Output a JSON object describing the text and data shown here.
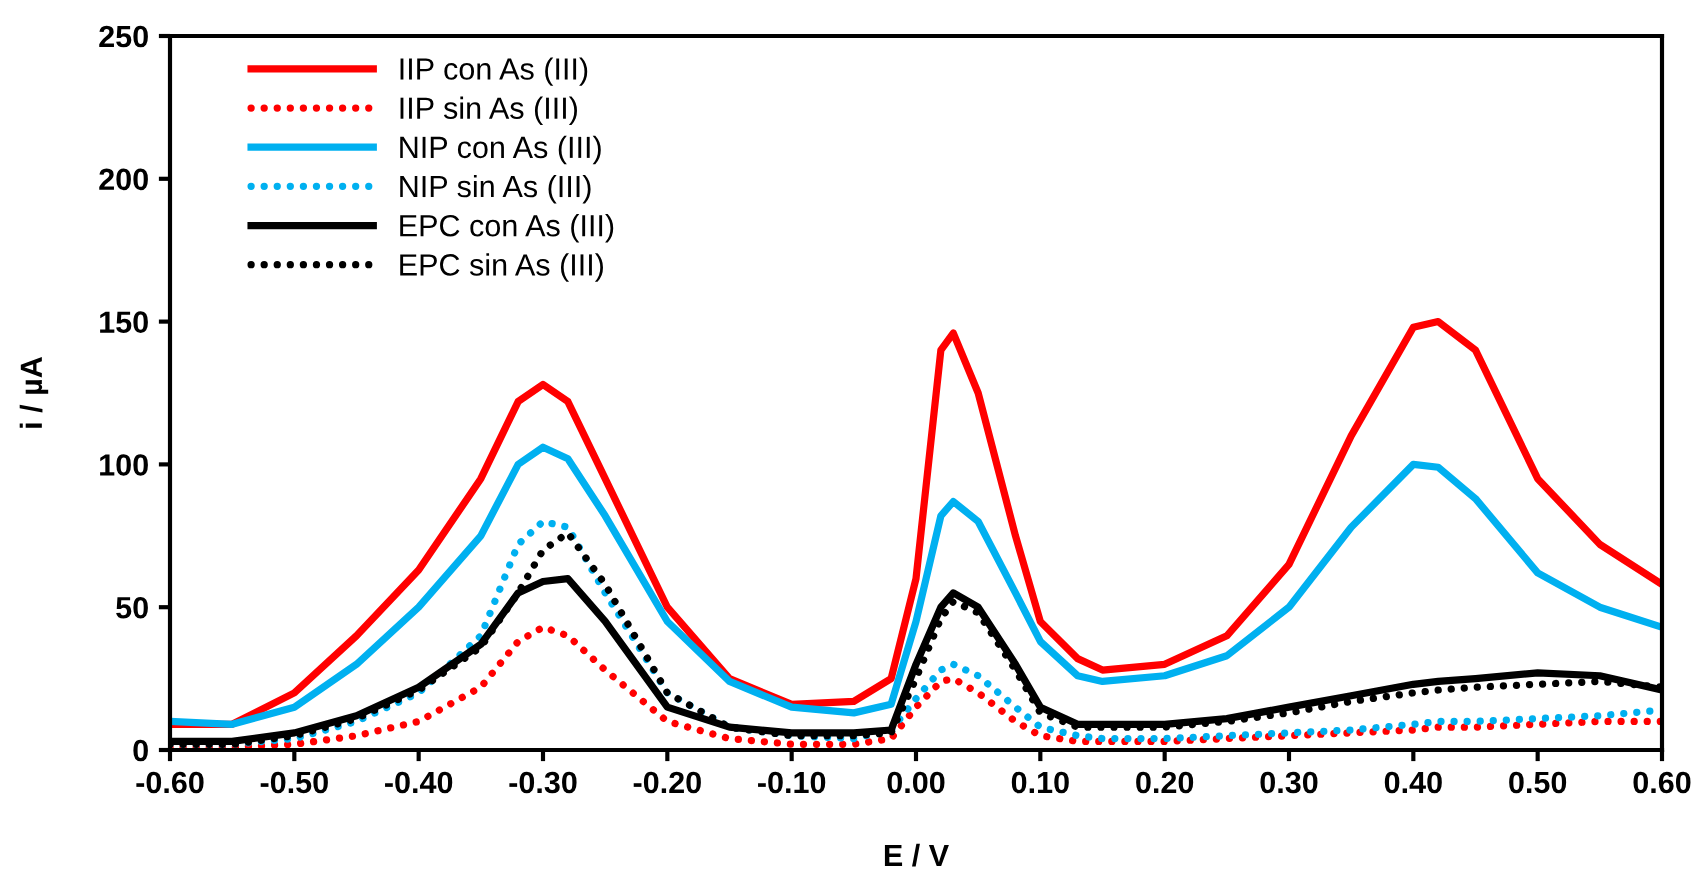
{
  "chart_data": {
    "type": "line",
    "xlabel": "E / V",
    "ylabel": "i / µA",
    "x": [
      -0.6,
      -0.55,
      -0.5,
      -0.45,
      -0.4,
      -0.35,
      -0.32,
      -0.3,
      -0.28,
      -0.25,
      -0.2,
      -0.15,
      -0.1,
      -0.05,
      -0.02,
      0.0,
      0.02,
      0.03,
      0.05,
      0.08,
      0.1,
      0.13,
      0.15,
      0.2,
      0.25,
      0.3,
      0.35,
      0.4,
      0.42,
      0.45,
      0.5,
      0.55,
      0.6
    ],
    "series": [
      {
        "name": "IIP con As (III)",
        "color": "#ff0000",
        "line_style": "solid",
        "values": [
          9,
          9,
          20,
          40,
          63,
          95,
          122,
          128,
          122,
          95,
          50,
          25,
          16,
          17,
          25,
          60,
          140,
          146,
          125,
          75,
          45,
          32,
          28,
          30,
          40,
          65,
          110,
          148,
          150,
          140,
          95,
          72,
          58
        ]
      },
      {
        "name": "IIP sin As (III)",
        "color": "#ff0000",
        "line_style": "dotted",
        "values": [
          1,
          1,
          2,
          5,
          10,
          22,
          38,
          43,
          40,
          28,
          10,
          4,
          2,
          2,
          4,
          15,
          24,
          25,
          20,
          10,
          5,
          3,
          3,
          3,
          4,
          5,
          6,
          7,
          8,
          8,
          9,
          10,
          10
        ]
      },
      {
        "name": "NIP con As (III)",
        "color": "#00b0f0",
        "line_style": "solid",
        "values": [
          10,
          9,
          15,
          30,
          50,
          75,
          100,
          106,
          102,
          82,
          45,
          24,
          15,
          13,
          16,
          45,
          82,
          87,
          80,
          55,
          38,
          26,
          24,
          26,
          33,
          50,
          78,
          100,
          99,
          88,
          62,
          50,
          43
        ]
      },
      {
        "name": "NIP sin As (III)",
        "color": "#00b0f0",
        "line_style": "dotted",
        "values": [
          2,
          2,
          4,
          10,
          20,
          40,
          72,
          80,
          78,
          55,
          20,
          8,
          5,
          4,
          7,
          18,
          28,
          30,
          26,
          15,
          8,
          5,
          4,
          4,
          5,
          6,
          7,
          9,
          10,
          10,
          11,
          12,
          14
        ]
      },
      {
        "name": "EPC con As (III)",
        "color": "#000000",
        "line_style": "solid",
        "values": [
          3,
          3,
          6,
          12,
          22,
          37,
          55,
          59,
          60,
          45,
          15,
          8,
          6,
          6,
          7,
          30,
          50,
          55,
          50,
          30,
          15,
          9,
          9,
          9,
          11,
          15,
          19,
          23,
          24,
          25,
          27,
          26,
          21
        ]
      },
      {
        "name": "EPC sin As (III)",
        "color": "#000000",
        "line_style": "dotted",
        "values": [
          2,
          2,
          5,
          11,
          21,
          36,
          55,
          70,
          76,
          58,
          20,
          8,
          5,
          5,
          6,
          25,
          46,
          52,
          48,
          28,
          13,
          8,
          8,
          8,
          10,
          13,
          17,
          20,
          21,
          22,
          23,
          24,
          22
        ]
      }
    ],
    "xlim": [
      -0.6,
      0.6
    ],
    "xticks": [
      {
        "value": -0.6,
        "label": "-0.60"
      },
      {
        "value": -0.5,
        "label": "-0.50"
      },
      {
        "value": -0.4,
        "label": "-0.40"
      },
      {
        "value": -0.3,
        "label": "-0.30"
      },
      {
        "value": -0.2,
        "label": "-0.20"
      },
      {
        "value": -0.1,
        "label": "-0.10"
      },
      {
        "value": 0,
        "label": "0.00"
      },
      {
        "value": 0.1,
        "label": "0.10"
      },
      {
        "value": 0.2,
        "label": "0.20"
      },
      {
        "value": 0.3,
        "label": "0.30"
      },
      {
        "value": 0.4,
        "label": "0.40"
      },
      {
        "value": 0.5,
        "label": "0.50"
      },
      {
        "value": 0.6,
        "label": "0.60"
      }
    ],
    "ylim": [
      0,
      250
    ],
    "yticks": [
      0,
      50,
      100,
      150,
      200,
      250
    ],
    "grid": false,
    "legend": "top left"
  }
}
